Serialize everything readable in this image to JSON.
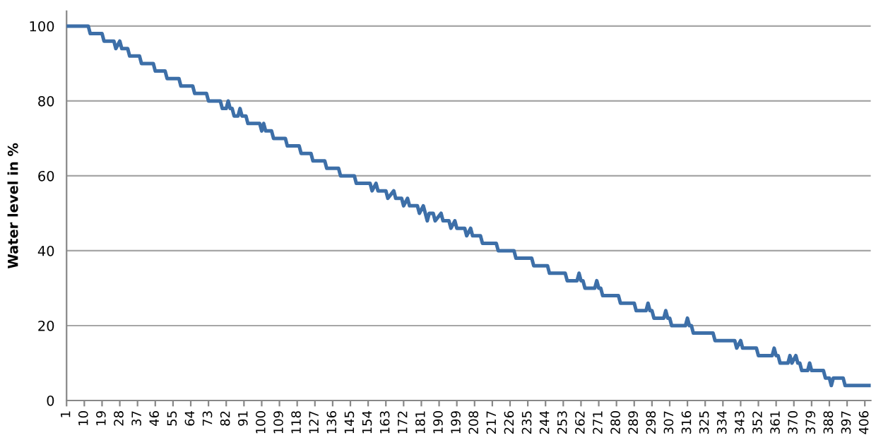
{
  "chart_data": {
    "type": "line",
    "ylabel": "Water level in %",
    "color": "#3d6fa8",
    "grid": "y",
    "legend": false,
    "marker": "none",
    "line_style": "solid",
    "x": [
      1,
      12,
      13,
      19,
      20,
      25,
      26,
      28,
      29,
      32,
      33,
      38,
      39,
      45,
      46,
      51,
      52,
      58,
      59,
      65,
      66,
      72,
      73,
      79,
      80,
      82,
      83,
      84,
      85,
      86,
      88,
      89,
      90,
      92,
      93,
      99,
      100,
      101,
      102,
      105,
      106,
      112,
      113,
      119,
      120,
      125,
      126,
      132,
      133,
      139,
      140,
      147,
      148,
      155,
      156,
      158,
      159,
      163,
      164,
      167,
      168,
      171,
      172,
      174,
      175,
      179,
      180,
      182,
      183,
      184,
      185,
      187,
      188,
      191,
      192,
      195,
      196,
      198,
      199,
      203,
      204,
      206,
      207,
      211,
      212,
      219,
      220,
      228,
      229,
      237,
      238,
      245,
      246,
      254,
      255,
      260,
      261,
      262,
      263,
      264,
      269,
      270,
      271,
      272,
      273,
      281,
      282,
      289,
      290,
      295,
      296,
      297,
      298,
      299,
      304,
      305,
      306,
      307,
      308,
      315,
      316,
      317,
      318,
      319,
      329,
      330,
      340,
      341,
      343,
      344,
      351,
      352,
      359,
      360,
      361,
      362,
      363,
      367,
      368,
      369,
      371,
      372,
      373,
      374,
      377,
      378,
      379,
      385,
      386,
      388,
      389,
      390,
      395,
      396,
      409
    ],
    "values": [
      100,
      100,
      98,
      98,
      96,
      96,
      94,
      96,
      94,
      94,
      92,
      92,
      90,
      90,
      88,
      88,
      86,
      86,
      84,
      84,
      82,
      82,
      80,
      80,
      78,
      78,
      80,
      78,
      78,
      76,
      76,
      78,
      76,
      76,
      74,
      74,
      72,
      74,
      72,
      72,
      70,
      70,
      68,
      68,
      66,
      66,
      64,
      64,
      62,
      62,
      60,
      60,
      58,
      58,
      56,
      58,
      56,
      56,
      54,
      56,
      54,
      54,
      52,
      54,
      52,
      52,
      50,
      52,
      50,
      48,
      50,
      50,
      48,
      50,
      48,
      48,
      46,
      48,
      46,
      46,
      44,
      46,
      44,
      44,
      42,
      42,
      40,
      40,
      38,
      38,
      36,
      36,
      34,
      34,
      32,
      32,
      34,
      32,
      32,
      30,
      30,
      32,
      30,
      30,
      28,
      28,
      26,
      26,
      24,
      24,
      26,
      24,
      24,
      22,
      22,
      24,
      22,
      22,
      20,
      20,
      22,
      20,
      20,
      18,
      18,
      16,
      16,
      14,
      16,
      14,
      14,
      12,
      12,
      14,
      12,
      12,
      10,
      10,
      12,
      10,
      12,
      10,
      10,
      8,
      8,
      10,
      8,
      8,
      6,
      6,
      4,
      6,
      6,
      4,
      4
    ],
    "xlim": [
      1,
      409
    ],
    "xticks": [
      1,
      10,
      19,
      28,
      37,
      46,
      55,
      64,
      73,
      82,
      91,
      100,
      109,
      118,
      127,
      136,
      145,
      154,
      163,
      172,
      181,
      190,
      199,
      208,
      217,
      226,
      235,
      244,
      253,
      262,
      271,
      280,
      289,
      298,
      307,
      316,
      325,
      334,
      343,
      352,
      361,
      370,
      379,
      388,
      397,
      406
    ],
    "ylim": [
      0,
      104
    ],
    "yticks": [
      0,
      20,
      40,
      60,
      80,
      100
    ]
  }
}
